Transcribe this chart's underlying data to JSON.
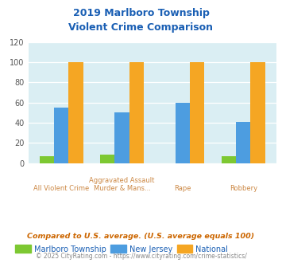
{
  "title": "2019 Marlboro Township\nViolent Crime Comparison",
  "cat_labels_top": [
    "",
    "Aggravated Assault",
    "",
    ""
  ],
  "cat_labels_bot": [
    "All Violent Crime",
    "Murder & Mans...",
    "Rape",
    "Robbery"
  ],
  "marlboro": [
    7,
    8,
    0,
    7
  ],
  "nj": [
    55,
    50,
    60,
    41
  ],
  "national": [
    100,
    100,
    100,
    100
  ],
  "marlboro_color": "#7dc832",
  "nj_color": "#4d9de0",
  "national_color": "#f5a623",
  "ylim": [
    0,
    120
  ],
  "yticks": [
    0,
    20,
    40,
    60,
    80,
    100,
    120
  ],
  "plot_bg": "#daeef3",
  "title_color": "#1a5fb4",
  "legend_labels": [
    "Marlboro Township",
    "New Jersey",
    "National"
  ],
  "footnote1": "Compared to U.S. average. (U.S. average equals 100)",
  "footnote2": "© 2025 CityRating.com - https://www.cityrating.com/crime-statistics/",
  "footnote1_color": "#cc6600",
  "footnote2_color": "#888888",
  "xtick_color": "#cc8844"
}
